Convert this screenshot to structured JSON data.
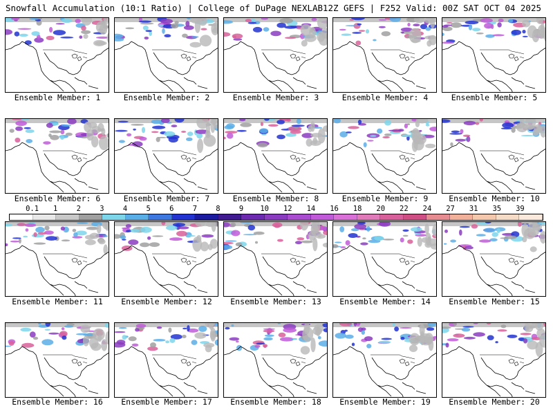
{
  "header": {
    "title": "Snowfall Accumulation (10:1 Ratio) | College of DuPage NEXLAB",
    "valid": "12Z GEFS | F252 Valid: 00Z SAT OCT 04 2025"
  },
  "legend": {
    "labels": [
      "0.1",
      "1",
      "2",
      "3",
      "4",
      "5",
      "6",
      "7",
      "8",
      "9",
      "10",
      "12",
      "14",
      "16",
      "18",
      "20",
      "22",
      "24",
      "27",
      "31",
      "35",
      "39"
    ],
    "colors": [
      "#ffffff",
      "#e8e8e8",
      "#c8c8c8",
      "#a0a0a0",
      "#7dd5ea",
      "#5aaee8",
      "#3c78e0",
      "#2233d0",
      "#1b1ba0",
      "#401a90",
      "#6b2ab0",
      "#8a3cc0",
      "#a94ccf",
      "#c05ad8",
      "#d870d8",
      "#e07ab8",
      "#d8609a",
      "#cf4f84",
      "#e68c90",
      "#f0b09a",
      "#f4c8ac",
      "#f6dcc6",
      "#fae9dc"
    ]
  },
  "panels": [
    {
      "label": "Ensemble Member: 1"
    },
    {
      "label": "Ensemble Member: 2"
    },
    {
      "label": "Ensemble Member: 3"
    },
    {
      "label": "Ensemble Member: 4"
    },
    {
      "label": "Ensemble Member: 5"
    },
    {
      "label": "Ensemble Member: 6"
    },
    {
      "label": "Ensemble Member: 7"
    },
    {
      "label": "Ensemble Member: 8"
    },
    {
      "label": "Ensemble Member: 9"
    },
    {
      "label": "Ensemble Member: 10"
    },
    {
      "label": "Ensemble Member: 11"
    },
    {
      "label": "Ensemble Member: 12"
    },
    {
      "label": "Ensemble Member: 13"
    },
    {
      "label": "Ensemble Member: 14"
    },
    {
      "label": "Ensemble Member: 15"
    },
    {
      "label": "Ensemble Member: 16"
    },
    {
      "label": "Ensemble Member: 17"
    },
    {
      "label": "Ensemble Member: 18"
    },
    {
      "label": "Ensemble Member: 19"
    },
    {
      "label": "Ensemble Member: 20"
    }
  ]
}
